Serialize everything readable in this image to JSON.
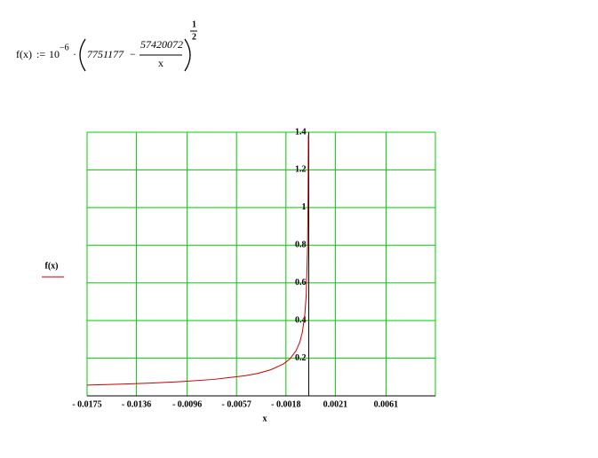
{
  "formula": {
    "lhs": "f(x)",
    "assign": ":=",
    "base": "10",
    "exponent": "−6",
    "dot": "·",
    "constant": "7751177",
    "minus": "−",
    "numerator": "57420072",
    "denominator": "x",
    "power_numerator": "1",
    "power_denominator": "2"
  },
  "chart_data": {
    "type": "line",
    "x_label": "x",
    "x": [
      -0.0175,
      -0.015,
      -0.0125,
      -0.01,
      -0.0075,
      -0.005,
      -0.004,
      -0.003,
      -0.002,
      -0.0015,
      -0.001,
      -0.0007,
      -0.0005,
      -0.0003,
      -0.0002,
      -0.0001,
      -5e-05,
      -3e-05
    ],
    "series": [
      {
        "name": "f(x)",
        "color": "#cc0000",
        "values": [
          0.0573,
          0.0619,
          0.0678,
          0.0758,
          0.0875,
          0.1072,
          0.1198,
          0.1384,
          0.1695,
          0.1957,
          0.2396,
          0.2864,
          0.3389,
          0.4375,
          0.5358,
          0.7578,
          1.0716,
          1.3835
        ]
      }
    ],
    "xlim": [
      -0.0175,
      0.01
    ],
    "xticks": [
      {
        "value": -0.0175,
        "label": "- 0.0175"
      },
      {
        "value": -0.0136,
        "label": "- 0.0136"
      },
      {
        "value": -0.0096,
        "label": "- 0.0096"
      },
      {
        "value": -0.0057,
        "label": "- 0.0057"
      },
      {
        "value": -0.0018,
        "label": "- 0.0018"
      },
      0.0021,
      0.0061
    ],
    "ylim": [
      0,
      1.4
    ],
    "yticks": [
      0.2,
      0.4,
      0.6,
      0.8,
      1,
      1.2,
      1.4
    ],
    "grid": true,
    "grid_color": "#00cc00"
  }
}
